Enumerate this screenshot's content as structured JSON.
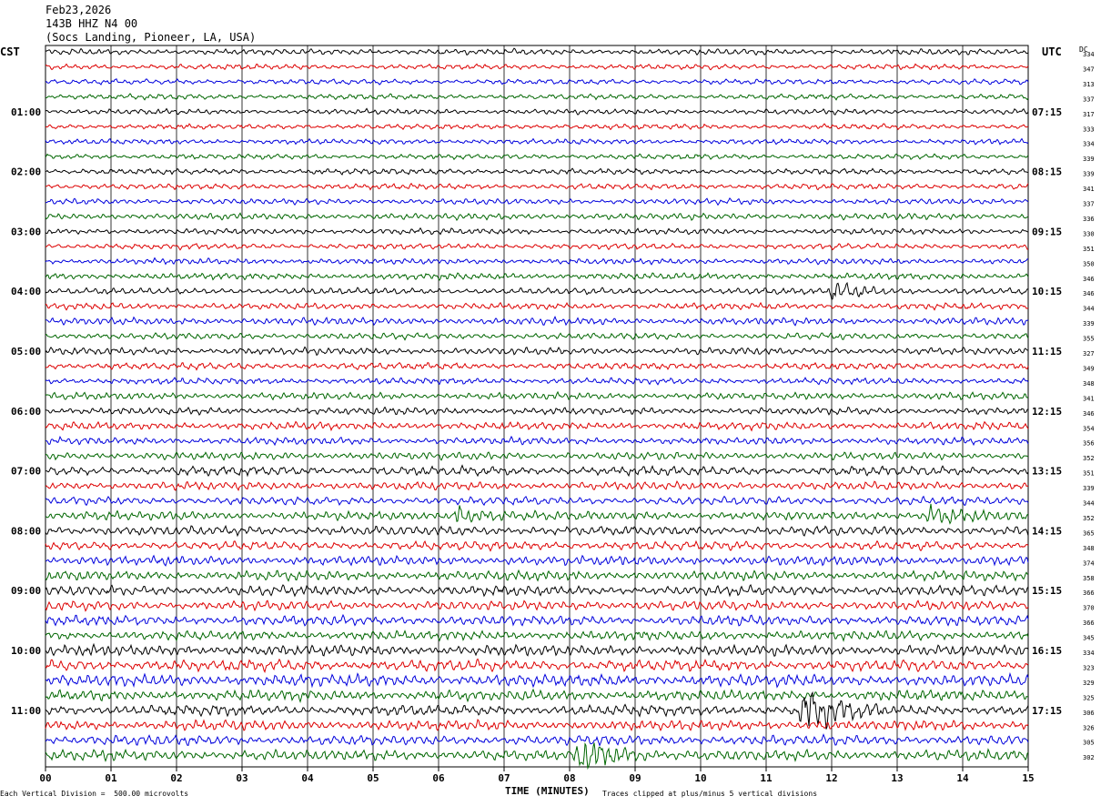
{
  "header": {
    "date": "Feb23,2026",
    "station": "143B HHZ N4 00",
    "location": "(Socs Landing, Pioneer, LA, USA)"
  },
  "left_axis_title": "CST",
  "right_axis_title": "UTC",
  "dc_title": "DC",
  "footer": {
    "scale": "Each Vertical Division =  500.00 microvolts",
    "clip": "Traces clipped at plus/minus 5 vertical divisions"
  },
  "colors": [
    "#000000",
    "#dd0000",
    "#0000dd",
    "#006600"
  ],
  "chart_data": {
    "type": "line",
    "title": "Feb23,2026",
    "xlabel": "TIME (MINUTES)",
    "x_ticks": [
      "00",
      "01",
      "02",
      "03",
      "04",
      "05",
      "06",
      "07",
      "08",
      "09",
      "10",
      "11",
      "12",
      "13",
      "14",
      "15"
    ],
    "xlim": [
      0,
      15
    ],
    "trace_count": 48,
    "cst_labels": [
      {
        "trace": 4,
        "label": "01:00"
      },
      {
        "trace": 8,
        "label": "02:00"
      },
      {
        "trace": 12,
        "label": "03:00"
      },
      {
        "trace": 16,
        "label": "04:00"
      },
      {
        "trace": 20,
        "label": "05:00"
      },
      {
        "trace": 24,
        "label": "06:00"
      },
      {
        "trace": 28,
        "label": "07:00"
      },
      {
        "trace": 32,
        "label": "08:00"
      },
      {
        "trace": 36,
        "label": "09:00"
      },
      {
        "trace": 40,
        "label": "10:00"
      },
      {
        "trace": 44,
        "label": "11:00"
      }
    ],
    "utc_labels": [
      {
        "trace": 4,
        "label": "07:15"
      },
      {
        "trace": 8,
        "label": "08:15"
      },
      {
        "trace": 12,
        "label": "09:15"
      },
      {
        "trace": 16,
        "label": "10:15"
      },
      {
        "trace": 20,
        "label": "11:15"
      },
      {
        "trace": 24,
        "label": "12:15"
      },
      {
        "trace": 28,
        "label": "13:15"
      },
      {
        "trace": 32,
        "label": "14:15"
      },
      {
        "trace": 36,
        "label": "15:15"
      },
      {
        "trace": 40,
        "label": "16:15"
      },
      {
        "trace": 44,
        "label": "17:15"
      }
    ],
    "dc_offsets": [
      "334",
      "347",
      "313",
      "337",
      "317",
      "333",
      "334",
      "339",
      "339",
      "341",
      "337",
      "336",
      "330",
      "351",
      "350",
      "346",
      "346",
      "344",
      "339",
      "355",
      "327",
      "349",
      "348",
      "341",
      "346",
      "354",
      "356",
      "352",
      "351",
      "339",
      "344",
      "352",
      "365",
      "348",
      "374",
      "358",
      "366",
      "370",
      "366",
      "345",
      "334",
      "323",
      "329",
      "325",
      "306",
      "326",
      "305",
      "302"
    ],
    "amplitude_levels": [
      1.0,
      0.9,
      0.9,
      0.9,
      0.9,
      0.9,
      0.9,
      0.9,
      1.0,
      1.0,
      1.0,
      1.1,
      1.0,
      1.0,
      1.0,
      1.1,
      1.1,
      1.1,
      1.2,
      1.1,
      1.2,
      1.2,
      1.1,
      1.2,
      1.2,
      1.3,
      1.2,
      1.3,
      1.6,
      1.4,
      1.4,
      1.5,
      1.6,
      1.5,
      1.6,
      1.6,
      1.7,
      1.6,
      1.7,
      1.6,
      1.8,
      1.9,
      2.0,
      1.8,
      1.8,
      1.7,
      1.7,
      1.8
    ],
    "events": [
      {
        "trace": 16,
        "minute": 12.05,
        "strength": 3.0
      },
      {
        "trace": 31,
        "minute": 6.3,
        "strength": 2.0
      },
      {
        "trace": 31,
        "minute": 13.5,
        "strength": 2.2
      },
      {
        "trace": 44,
        "minute": 11.6,
        "strength": 4.5
      },
      {
        "trace": 47,
        "minute": 8.2,
        "strength": 3.2
      }
    ]
  }
}
